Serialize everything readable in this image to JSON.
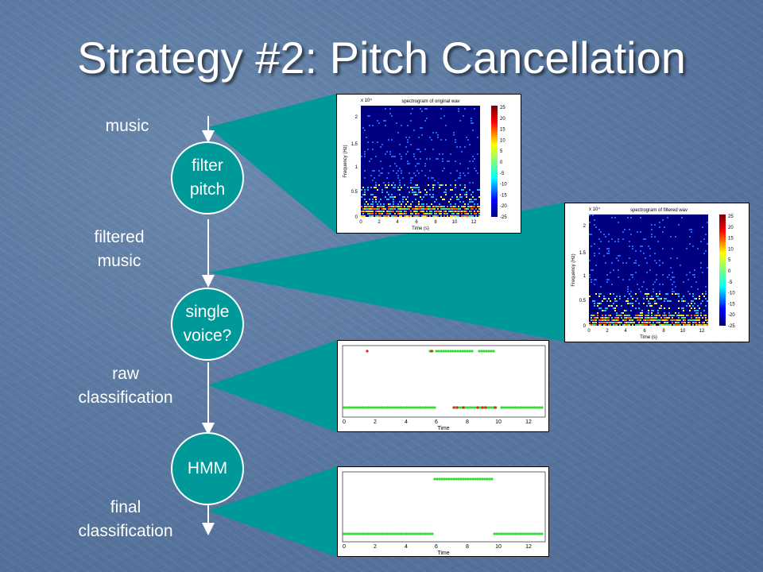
{
  "slide": {
    "title": "Strategy #2: Pitch Cancellation",
    "flow_labels": {
      "music": "music",
      "filtered_1": "filtered",
      "filtered_2": "music",
      "raw_1": "raw",
      "raw_2": "classification",
      "final_1": "final",
      "final_2": "classification"
    },
    "nodes": {
      "filter_1": "filter",
      "filter_2": "pitch",
      "single_1": "single",
      "single_2": "voice?",
      "hmm": "HMM"
    },
    "callout_color": "#009999",
    "spectrogram_original": {
      "title": "spectrogram of original wav",
      "xlabel": "Time (s)",
      "ylabel": "Frequency (Hz)",
      "exponent": "x 10⁴",
      "y_ticks": [
        "2",
        "1.5",
        "1",
        "0.5",
        "0"
      ],
      "x_ticks": [
        "0",
        "2",
        "4",
        "6",
        "8",
        "10",
        "12"
      ],
      "colorbar_ticks": [
        "25",
        "20",
        "15",
        "10",
        "5",
        "0",
        "-5",
        "-10",
        "-15",
        "-20",
        "-25"
      ]
    },
    "spectrogram_filtered": {
      "title": "spectrogram of filtered wav",
      "xlabel": "Time (s)",
      "ylabel": "Frequency (Hz)",
      "exponent": "x 10⁴",
      "y_ticks": [
        "2",
        "1.5",
        "1",
        "0.5",
        "0"
      ],
      "x_ticks": [
        "0",
        "2",
        "4",
        "6",
        "8",
        "10",
        "12"
      ],
      "colorbar_ticks": [
        "25",
        "20",
        "15",
        "10",
        "5",
        "0",
        "-5",
        "-10",
        "-15",
        "-20",
        "-25"
      ]
    },
    "raw_plot": {
      "xlabel": "Time",
      "x_ticks": [
        "0",
        "2",
        "4",
        "6",
        "8",
        "10",
        "12"
      ]
    },
    "final_plot": {
      "xlabel": "Time",
      "x_ticks": [
        "0",
        "2",
        "4",
        "6",
        "8",
        "10",
        "12"
      ]
    }
  }
}
